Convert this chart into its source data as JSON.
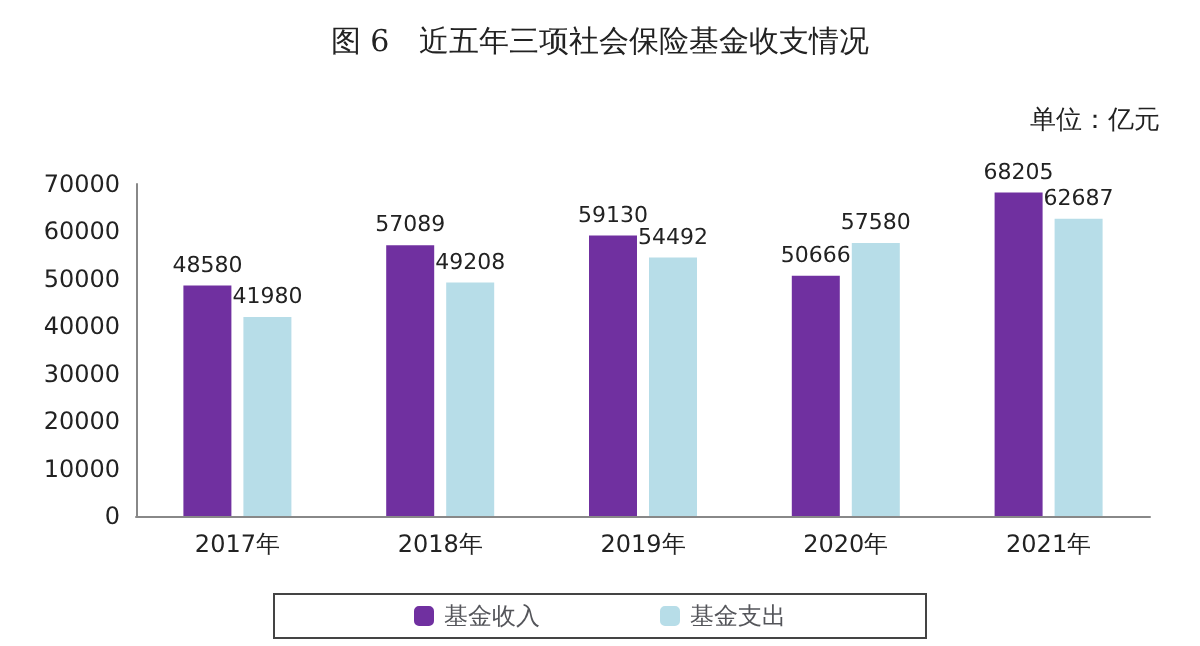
{
  "chart_data": {
    "type": "bar",
    "title": "图 6　近五年三项社会保险基金收支情况",
    "annotations": [
      "单位：亿元"
    ],
    "categories": [
      "2017年",
      "2018年",
      "2019年",
      "2020年",
      "2021年"
    ],
    "series": [
      {
        "name": "基金收入",
        "color": "#7030a0",
        "values": [
          48580,
          57089,
          59130,
          50666,
          68205
        ]
      },
      {
        "name": "基金支出",
        "color": "#b7dde8",
        "values": [
          41980,
          49208,
          54492,
          57580,
          62687
        ]
      }
    ],
    "ylim": [
      0,
      70000
    ],
    "yticks": [
      0,
      10000,
      20000,
      30000,
      40000,
      50000,
      60000,
      70000
    ],
    "grid": false,
    "legend": "bottom",
    "data_labels": true
  }
}
